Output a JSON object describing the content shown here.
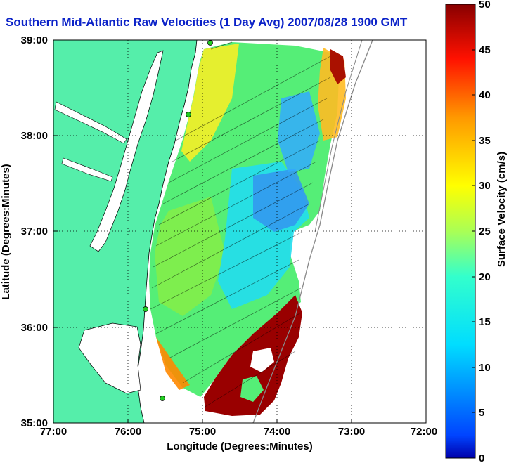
{
  "map": {
    "title": "Southern Mid-Atlantic Raw Velocities (1 Day Avg) 2007/08/28 1900 GMT",
    "xlabel": "Longitude (Degrees:Minutes)",
    "ylabel": "Latitude (Degrees:Minutes)",
    "x_ticks": [
      "77:00",
      "76:00",
      "75:00",
      "74:00",
      "73:00",
      "72:00"
    ],
    "y_ticks": [
      "39:00",
      "38:00",
      "37:00",
      "36:00",
      "35:00"
    ],
    "lon_range": [
      -77,
      -72
    ],
    "lat_range": [
      35,
      39
    ],
    "colors": {
      "land": "#55eeaa",
      "water": "#ffffff",
      "grid": "#000000"
    }
  },
  "colorbar": {
    "label": "Surface Velocity (cm/s)",
    "ticks": [
      "50",
      "45",
      "40",
      "35",
      "30",
      "25",
      "20",
      "15",
      "10",
      "5",
      "0"
    ],
    "range": [
      0,
      50
    ],
    "colormap": "jet"
  }
}
